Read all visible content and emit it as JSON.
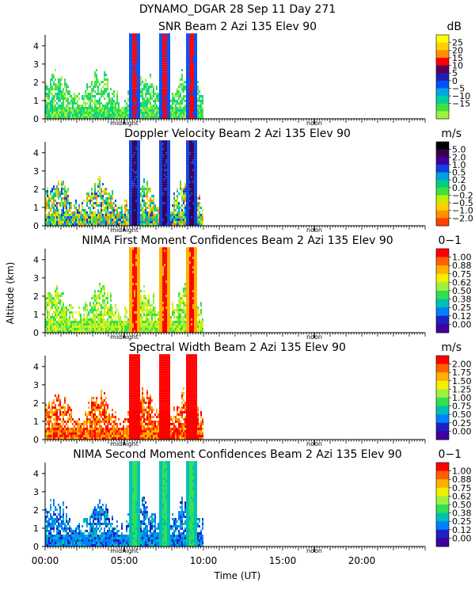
{
  "chart_data": {
    "type": "heatmap",
    "title": "DYNAMO_DGAR  28 Sep 11 Day 271",
    "xlabel": "Time (UT)",
    "ylabel": "Altitude (km)",
    "x_range_hours": [
      0,
      24
    ],
    "x_ticks": [
      0,
      5,
      10,
      15,
      20
    ],
    "x_tick_labels": [
      "00:00",
      "05:00",
      "10:00",
      "15:00",
      "20:00"
    ],
    "y_range_km": [
      0,
      4.6
    ],
    "y_ticks": [
      0,
      1,
      2,
      3,
      4
    ],
    "y_tick_labels": [
      "0",
      "1",
      "2",
      "3",
      "4"
    ],
    "day_markers": [
      {
        "label": "midnight",
        "hour": 5.0
      },
      {
        "label": "noon",
        "hour": 17.0
      }
    ],
    "data_extent_hours": [
      0.0,
      10.0
    ],
    "convective_columns_hours": [
      5.6,
      7.5,
      9.2
    ],
    "panels": [
      {
        "title": "SNR Beam 2 Azi 135 Elev 90",
        "unit": "dB",
        "scale_labels": [
          "25",
          "20",
          "15",
          "10",
          "5",
          "0",
          "−5",
          "−10",
          "−15"
        ],
        "colors": [
          "#ffff00",
          "#ffd000",
          "#ff9000",
          "#ff0000",
          "#5a005a",
          "#2020b0",
          "#0050ff",
          "#00a8e0",
          "#00d0a0",
          "#40e040",
          "#a0f040"
        ],
        "col_index_rules": {
          "base": 9,
          "noise": 1.2,
          "core": 3,
          "edge": 6
        }
      },
      {
        "title": "Doppler Velocity Beam 2 Azi 135 Elev 90",
        "unit": "m/s",
        "scale_labels": [
          "5.0",
          "2.0",
          "1.0",
          "0.5",
          "0.2",
          "0.0",
          "−0.2",
          "−0.5",
          "−1.0",
          "−2.0"
        ],
        "colors": [
          "#000000",
          "#3a0050",
          "#4000a0",
          "#1040e0",
          "#00a0e0",
          "#00d080",
          "#40e040",
          "#c0f000",
          "#ffd000",
          "#ff9000",
          "#ff4000"
        ],
        "col_index_rules": {
          "base": 6,
          "noise": 3.5,
          "core": 1,
          "edge": 3
        }
      },
      {
        "title": "NIMA First Moment Confidences Beam 2 Azi 135 Elev 90",
        "unit": "0−1",
        "scale_labels": [
          "1.00",
          "0.88",
          "0.75",
          "0.62",
          "0.50",
          "0.38",
          "0.25",
          "0.12",
          "0.00"
        ],
        "colors": [
          "#ff0000",
          "#ff6000",
          "#ffb000",
          "#f0f000",
          "#a0f040",
          "#30e050",
          "#00c0b0",
          "#0080ff",
          "#2020c0",
          "#4000a0"
        ],
        "col_index_rules": {
          "base": 4,
          "noise": 1.4,
          "core": 0,
          "edge": 2
        }
      },
      {
        "title": "Spectral Width Beam 2 Azi 135 Elev 90",
        "unit": "m/s",
        "scale_labels": [
          "2.00",
          "1.75",
          "1.50",
          "1.25",
          "1.00",
          "0.75",
          "0.50",
          "0.25",
          "0.00"
        ],
        "colors": [
          "#ff0000",
          "#ff6000",
          "#ffb000",
          "#f0f000",
          "#a0f040",
          "#30e050",
          "#00c0b0",
          "#0080ff",
          "#2020c0",
          "#4000a0"
        ],
        "col_index_rules": {
          "base": 1,
          "noise": 1.6,
          "core": 0,
          "edge": 0
        }
      },
      {
        "title": "NIMA Second Moment Confidences Beam 2 Azi 135 Elev 90",
        "unit": "0−1",
        "scale_labels": [
          "1.00",
          "0.88",
          "0.75",
          "0.62",
          "0.50",
          "0.38",
          "0.25",
          "0.12",
          "0.00"
        ],
        "colors": [
          "#ff0000",
          "#ff6000",
          "#ffb000",
          "#f0f000",
          "#a0f040",
          "#30e050",
          "#00c0b0",
          "#0080ff",
          "#2020c0",
          "#4000a0"
        ],
        "col_index_rules": {
          "base": 7,
          "noise": 1.0,
          "core": 5,
          "edge": 6
        }
      }
    ]
  }
}
